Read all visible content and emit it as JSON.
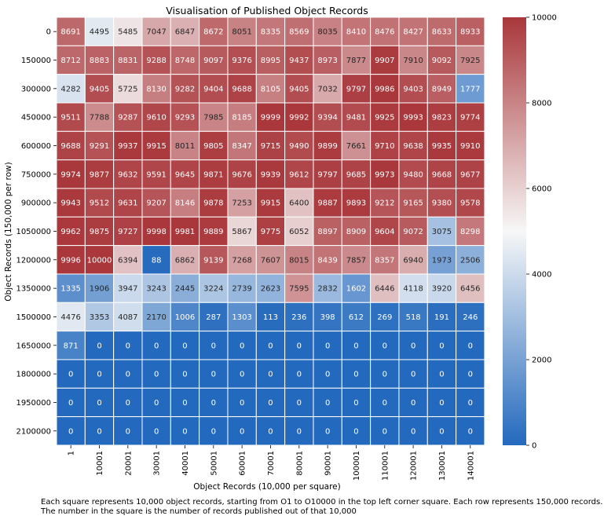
{
  "chart_data": {
    "type": "heatmap",
    "title": "Visualisation of Published Object Records",
    "xlabel": "Object Records (10,000 per square)",
    "ylabel": "Object Records (150,000 per row)",
    "x_categories": [
      "1",
      "10001",
      "20001",
      "30001",
      "40001",
      "50001",
      "60001",
      "70001",
      "80001",
      "90001",
      "100001",
      "110001",
      "120001",
      "130001",
      "140001"
    ],
    "y_categories": [
      "0",
      "150000",
      "300000",
      "450000",
      "600000",
      "750000",
      "900000",
      "1050000",
      "1200000",
      "1350000",
      "1500000",
      "1650000",
      "1800000",
      "1950000",
      "2100000"
    ],
    "values": [
      [
        8691,
        4495,
        5485,
        7047,
        6847,
        8672,
        8051,
        8335,
        8569,
        8035,
        8410,
        8476,
        8427,
        8633,
        8933
      ],
      [
        8712,
        8883,
        8831,
        9288,
        8748,
        9097,
        9376,
        8995,
        9437,
        8973,
        7877,
        9907,
        7910,
        9092,
        7925
      ],
      [
        4282,
        9405,
        5725,
        8130,
        9282,
        9404,
        9688,
        8105,
        9405,
        7032,
        9797,
        9986,
        9403,
        8949,
        1777
      ],
      [
        9511,
        7788,
        9287,
        9610,
        9293,
        7985,
        8185,
        9999,
        9992,
        9394,
        9481,
        9925,
        9993,
        9823,
        9774
      ],
      [
        9688,
        9291,
        9937,
        9915,
        8011,
        9805,
        8347,
        9715,
        9490,
        9899,
        7661,
        9710,
        9638,
        9935,
        9910
      ],
      [
        9974,
        9877,
        9632,
        9591,
        9645,
        9871,
        9676,
        9939,
        9612,
        9797,
        9685,
        9973,
        9480,
        9668,
        9677
      ],
      [
        9943,
        9512,
        9631,
        9207,
        8146,
        9878,
        7253,
        9915,
        6400,
        9887,
        9893,
        9212,
        9165,
        9380,
        9578
      ],
      [
        9962,
        9875,
        9727,
        9998,
        9981,
        9889,
        5867,
        9775,
        6052,
        8897,
        8909,
        9604,
        9072,
        3075,
        8298
      ],
      [
        9996,
        10000,
        6394,
        88,
        6862,
        9139,
        7268,
        7607,
        8015,
        8439,
        7857,
        8357,
        6940,
        1973,
        2506
      ],
      [
        1335,
        1906,
        3947,
        3243,
        2445,
        3224,
        2739,
        2623,
        7595,
        2832,
        1602,
        6446,
        4118,
        3920,
        6456
      ],
      [
        4476,
        3353,
        4087,
        2170,
        1006,
        287,
        1303,
        113,
        236,
        398,
        612,
        269,
        518,
        191,
        246
      ],
      [
        871,
        0,
        0,
        0,
        0,
        0,
        0,
        0,
        0,
        0,
        0,
        0,
        0,
        0,
        0
      ],
      [
        0,
        0,
        0,
        0,
        0,
        0,
        0,
        0,
        0,
        0,
        0,
        0,
        0,
        0,
        0
      ],
      [
        0,
        0,
        0,
        0,
        0,
        0,
        0,
        0,
        0,
        0,
        0,
        0,
        0,
        0,
        0
      ],
      [
        0,
        0,
        0,
        0,
        0,
        0,
        0,
        0,
        0,
        0,
        0,
        0,
        0,
        0,
        0
      ]
    ],
    "colorbar": {
      "range": [
        0,
        10000
      ],
      "ticks": [
        "0",
        "2000",
        "4000",
        "6000",
        "8000",
        "10000"
      ],
      "colormap": "vlag",
      "low_color": "#2369bd",
      "mid_color": "#f7f7f7",
      "high_color": "#a9373b"
    },
    "cell_text_colors": {
      "light": "#ffffff",
      "dark": "#262626"
    }
  },
  "caption": {
    "line1": "Each square represents 10,000 object records, starting from O1 to O10000 in the top left corner square. Each row represents 150,000 records.",
    "line2": "The number in the square is the number of records published out of that 10,000"
  }
}
